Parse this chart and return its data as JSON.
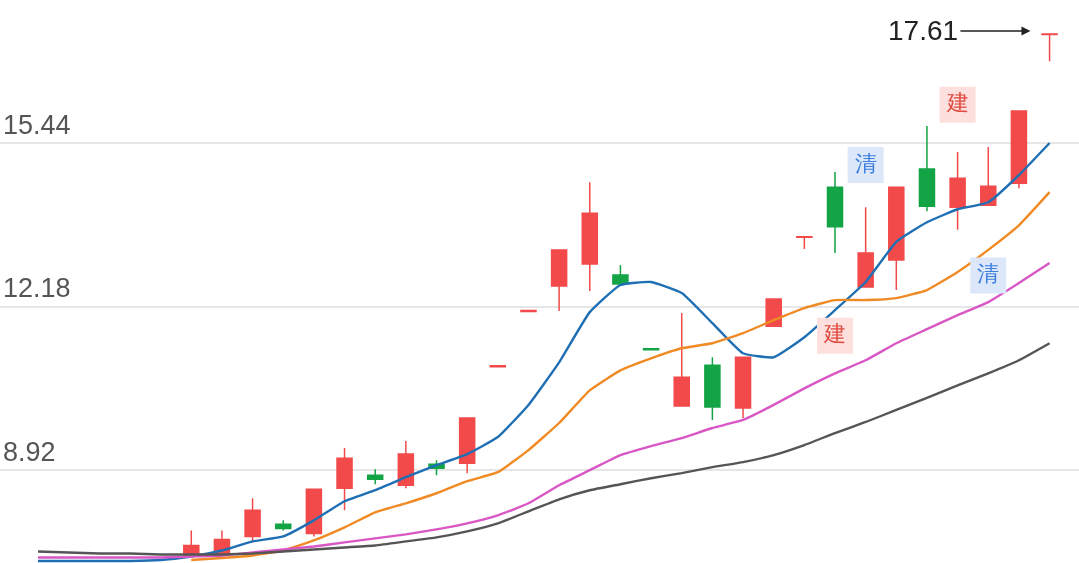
{
  "chart_data": {
    "type": "candlestick",
    "categories": [
      null,
      null,
      null,
      null,
      null,
      null,
      null,
      null,
      null,
      null,
      null,
      null,
      null,
      null,
      null,
      null,
      null,
      null,
      null,
      null,
      null,
      null,
      null,
      null,
      null,
      null,
      null,
      null,
      null,
      null,
      null,
      null,
      null,
      null
    ],
    "ohlc": [
      null,
      null,
      null,
      null,
      null,
      [
        7.22,
        7.72,
        7.2,
        7.42
      ],
      [
        7.24,
        7.72,
        7.2,
        7.54
      ],
      [
        7.6,
        8.36,
        7.48,
        8.12
      ],
      [
        7.84,
        7.92,
        7.72,
        7.76
      ],
      [
        7.66,
        8.54,
        7.6,
        8.54
      ],
      [
        8.56,
        9.36,
        8.12,
        9.16
      ],
      [
        8.82,
        8.94,
        8.64,
        8.74
      ],
      [
        8.62,
        9.5,
        8.56,
        9.24
      ],
      [
        9.04,
        9.12,
        8.82,
        8.96
      ],
      [
        9.06,
        9.96,
        8.86,
        9.96
      ],
      [
        10.98,
        11.0,
        10.98,
        11.0
      ],
      [
        12.08,
        12.1,
        12.08,
        12.1
      ],
      [
        12.59,
        13.31,
        12.09,
        13.31
      ],
      [
        13.03,
        14.66,
        12.49,
        14.04
      ],
      [
        12.81,
        13.01,
        12.63,
        12.63
      ],
      [
        11.34,
        11.34,
        11.32,
        11.32
      ],
      [
        10.2,
        12.05,
        10.2,
        10.77
      ],
      [
        11.01,
        11.17,
        9.92,
        10.18
      ],
      [
        10.16,
        11.17,
        9.96,
        11.17
      ],
      [
        11.79,
        12.33,
        11.79,
        12.33
      ],
      [
        13.56,
        13.57,
        13.33,
        13.57
      ],
      [
        14.56,
        14.86,
        13.25,
        13.77
      ],
      [
        12.57,
        14.16,
        12.57,
        13.25
      ],
      [
        13.11,
        14.56,
        12.51,
        14.56
      ],
      [
        14.92,
        15.78,
        14.08,
        14.18
      ],
      [
        14.16,
        15.26,
        13.71,
        14.74
      ],
      [
        14.2,
        15.36,
        14.2,
        14.58
      ],
      [
        14.64,
        16.08,
        14.54,
        16.08
      ],
      [
        17.6,
        17.61,
        17.07,
        17.61
      ]
    ],
    "colors": [
      null,
      null,
      null,
      null,
      null,
      "#f24a4a",
      "#f24a4a",
      "#f24a4a",
      "#13a445",
      "#f24a4a",
      "#f24a4a",
      "#13a445",
      "#f24a4a",
      "#13a445",
      "#f24a4a",
      "#f24a4a",
      "#f24a4a",
      "#f24a4a",
      "#f24a4a",
      "#13a445",
      "#13a445",
      "#f24a4a",
      "#13a445",
      "#f24a4a",
      "#f24a4a",
      "#f24a4a",
      "#13a445",
      "#f24a4a",
      "#f24a4a",
      "#13a445",
      "#f24a4a",
      "#f24a4a",
      "#f24a4a",
      "#f24a4a"
    ],
    "series": [
      {
        "type": "line",
        "color": "#1f6fb5",
        "values": [
          7.11,
          7.11,
          7.11,
          7.11,
          7.13,
          7.2,
          7.32,
          7.5,
          7.6,
          7.92,
          8.3,
          8.52,
          8.78,
          9.02,
          9.24,
          9.58,
          10.22,
          11.07,
          12.07,
          12.61,
          12.67,
          12.45,
          11.85,
          11.25,
          11.17,
          11.57,
          12.11,
          12.67,
          13.47,
          13.86,
          14.12,
          14.26,
          14.8,
          15.44
        ]
      },
      {
        "type": "line",
        "color": "#f08a24",
        "values": [
          null,
          null,
          null,
          null,
          null,
          7.13,
          7.17,
          7.22,
          7.32,
          7.52,
          7.78,
          8.08,
          8.26,
          8.46,
          8.7,
          8.88,
          9.32,
          9.86,
          10.51,
          10.91,
          11.15,
          11.35,
          11.45,
          11.65,
          11.91,
          12.15,
          12.31,
          12.31,
          12.35,
          12.51,
          12.87,
          13.31,
          13.8,
          14.46
        ]
      },
      {
        "type": "line",
        "color": "#d957c4",
        "values": [
          7.18,
          7.18,
          7.18,
          7.18,
          7.18,
          7.2,
          7.22,
          7.28,
          7.34,
          7.4,
          7.48,
          7.56,
          7.64,
          7.74,
          7.86,
          8.02,
          8.26,
          8.62,
          8.92,
          9.22,
          9.4,
          9.56,
          9.76,
          9.92,
          10.22,
          10.55,
          10.85,
          11.11,
          11.45,
          11.73,
          12.01,
          12.27,
          12.65,
          13.05
        ]
      },
      {
        "type": "line",
        "color": "#555555",
        "values": [
          7.3,
          7.28,
          7.26,
          7.26,
          7.24,
          7.24,
          7.24,
          7.26,
          7.3,
          7.34,
          7.38,
          7.42,
          7.5,
          7.58,
          7.7,
          7.86,
          8.1,
          8.34,
          8.52,
          8.64,
          8.76,
          8.86,
          8.98,
          9.08,
          9.22,
          9.42,
          9.66,
          9.88,
          10.12,
          10.36,
          10.61,
          10.85,
          11.11,
          11.45
        ]
      },
      {
        "type": "scatter",
        "color": "#fde0de",
        "marker": "square",
        "values": [
          null,
          null,
          null,
          null,
          null,
          null,
          null,
          null,
          null,
          null,
          null,
          null,
          null,
          null,
          null,
          null,
          null,
          null,
          null,
          null,
          null,
          null,
          null,
          null,
          null,
          null,
          11.6,
          null,
          null,
          null,
          16.2,
          null,
          null,
          null
        ],
        "value_labels": [
          null,
          null,
          null,
          null,
          null,
          null,
          null,
          null,
          null,
          null,
          null,
          null,
          null,
          null,
          null,
          null,
          null,
          null,
          null,
          null,
          null,
          null,
          null,
          null,
          null,
          null,
          "建",
          null,
          null,
          null,
          "建",
          null,
          null,
          null
        ]
      },
      {
        "type": "scatter",
        "color": "#dce8fa",
        "marker": "square",
        "values": [
          null,
          null,
          null,
          null,
          null,
          null,
          null,
          null,
          null,
          null,
          null,
          null,
          null,
          null,
          null,
          null,
          null,
          null,
          null,
          null,
          null,
          null,
          null,
          null,
          null,
          null,
          null,
          15.0,
          null,
          null,
          null,
          12.8,
          null,
          null
        ],
        "value_labels": [
          null,
          null,
          null,
          null,
          null,
          null,
          null,
          null,
          null,
          null,
          null,
          null,
          null,
          null,
          null,
          null,
          null,
          null,
          null,
          null,
          null,
          null,
          null,
          null,
          null,
          null,
          null,
          "清",
          null,
          null,
          null,
          "清",
          null,
          null
        ]
      }
    ],
    "annotations": [
      "17.61"
    ],
    "ylim": [
      7.07,
      18.29
    ],
    "yticks": [
      8.92,
      12.18,
      15.44
    ],
    "grid": "y",
    "tick_labels": "y"
  }
}
